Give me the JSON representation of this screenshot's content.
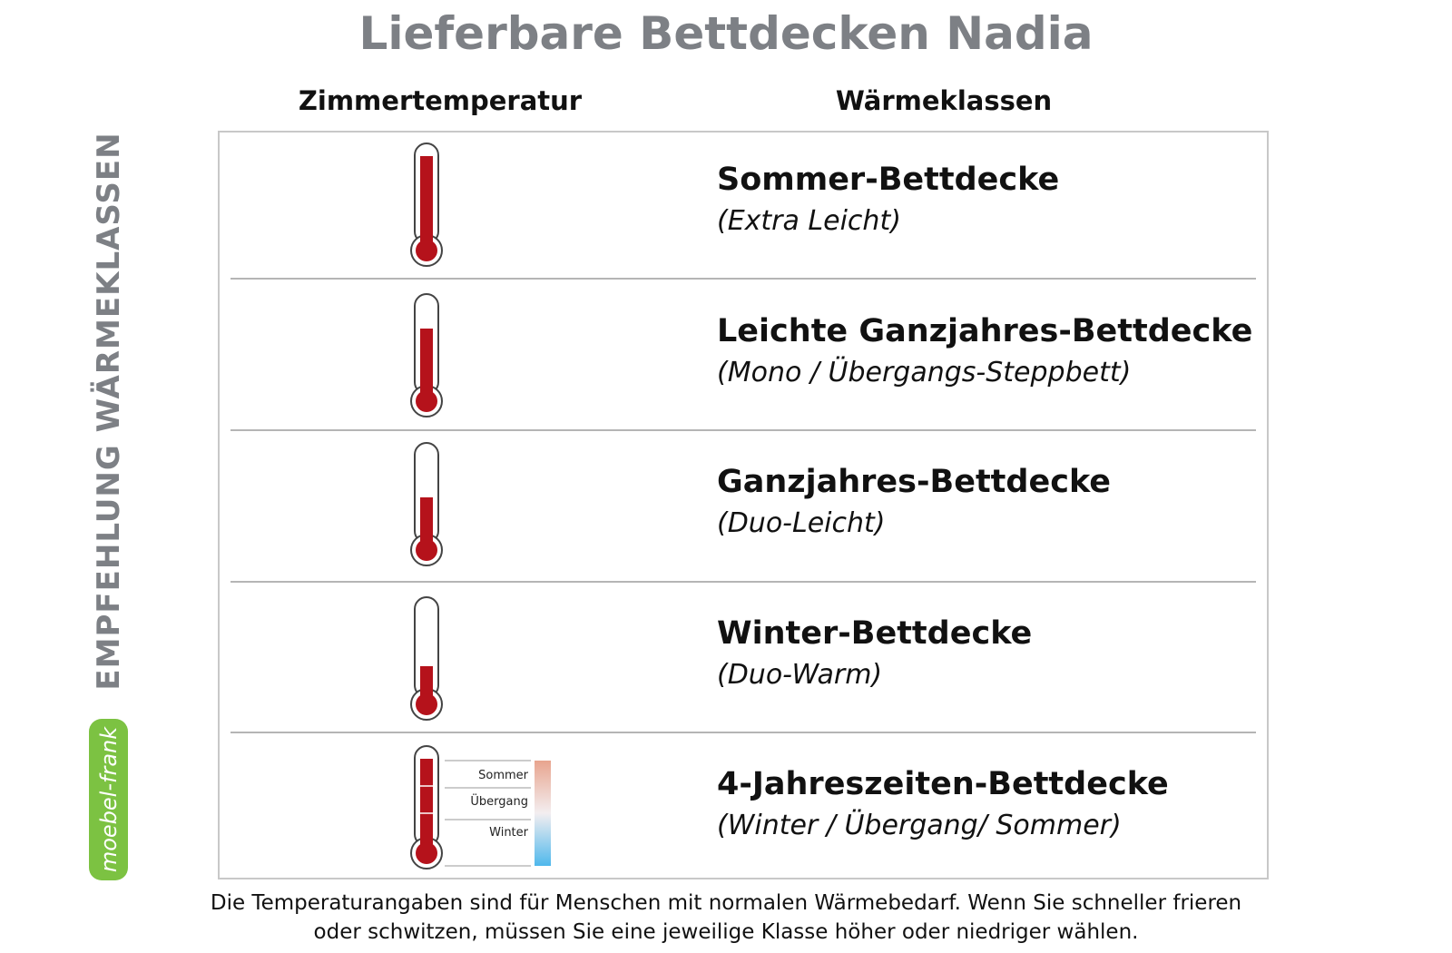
{
  "title": "Lieferbare Bettdecken Nadia",
  "side_label": "EMPFEHLUNG WÄRMEKLASSEN",
  "logo": "moebel-frank",
  "table": {
    "headers": [
      "Zimmertemperatur",
      "Wärmeklassen"
    ],
    "rows": [
      {
        "name": "Sommer-Bettdecke",
        "note": "(Extra Leicht)"
      },
      {
        "name": "Leichte Ganzjahres-Bettdecke",
        "note": "(Mono / Übergangs-Steppbett)"
      },
      {
        "name": "Ganzjahres-Bettdecke",
        "note": "(Duo-Leicht)"
      },
      {
        "name": "Winter-Bettdecke",
        "note": "(Duo-Warm)"
      },
      {
        "name": "4-Jahreszeiten-Bettdecke",
        "note": "(Winter / Übergang/ Sommer)"
      }
    ]
  },
  "legend": [
    "Sommer",
    "Übergang",
    "Winter"
  ],
  "footnote": [
    "Die Temperaturangaben sind für Menschen mit normalen Wärmebedarf. Wenn Sie schneller frieren",
    "oder schwitzen, müssen Sie eine jeweilige Klasse höher oder niedriger wählen."
  ]
}
